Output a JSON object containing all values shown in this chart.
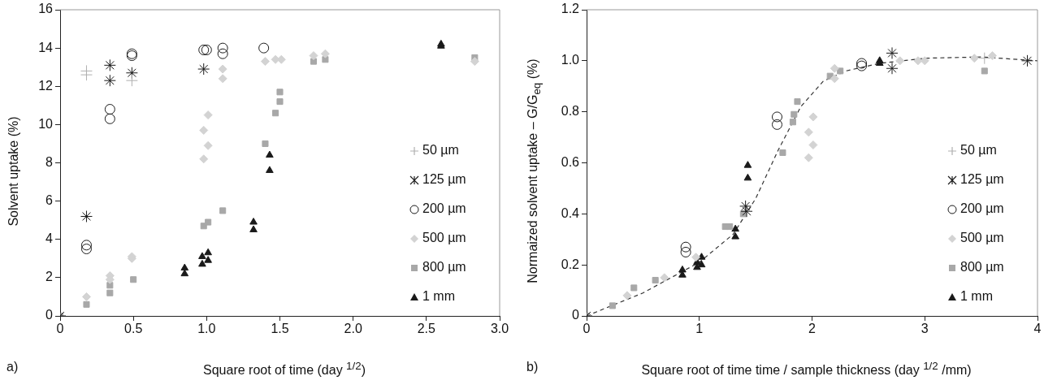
{
  "chart_data": [
    {
      "type": "scatter",
      "xlabel": "Square root of time (day $^{1/2}$)",
      "ylabel": "Solvent uptake (%)",
      "annotations": [
        "a)"
      ],
      "xlim": [
        0,
        3
      ],
      "xticks": [
        0,
        0.5,
        {
          "value": 1,
          "label": "1.0"
        },
        1.5,
        {
          "value": 2,
          "label": "2.0"
        },
        2.5,
        {
          "value": 3,
          "label": "3.0"
        }
      ],
      "ylim": [
        0,
        16
      ],
      "yticks": [
        0,
        2,
        4,
        6,
        8,
        10,
        12,
        14,
        16
      ],
      "grid": false,
      "legend": "bottom right",
      "series": [
        {
          "name": "50 µm",
          "color": "#b0b0b0",
          "marker": "cross",
          "x": [
            0.18,
            0.18,
            0.49
          ],
          "values": [
            12.8,
            12.6,
            12.3
          ]
        },
        {
          "name": "125 µm",
          "color": "#1a1a1a",
          "x": [
            0,
            0.18,
            0.34,
            0.34,
            0.49,
            0.98
          ],
          "values": [
            0,
            5.2,
            13.1,
            12.3,
            12.7,
            12.9
          ]
        },
        {
          "name": "200 µm",
          "color": "#1a1a1a",
          "marker": "circle",
          "x": [
            0.18,
            0.18,
            0.34,
            0.34,
            0.49,
            0.49,
            0.98,
            1.0,
            1.11,
            1.11,
            1.39
          ],
          "values": [
            3.7,
            3.5,
            10.8,
            10.3,
            13.7,
            13.6,
            13.9,
            13.9,
            14.0,
            13.7,
            14.0
          ]
        },
        {
          "name": "500 µm",
          "color": "#d3d3d3",
          "marker": "diamond",
          "x": [
            0.18,
            0.34,
            0.34,
            0.49,
            0.49,
            0.98,
            1.01,
            1.01,
            0.98,
            1.11,
            1.11,
            1.4,
            1.47,
            1.51,
            1.73,
            1.81,
            2.83
          ],
          "values": [
            1.0,
            2.1,
            1.9,
            3.1,
            3.0,
            9.7,
            10.5,
            8.9,
            8.2,
            12.9,
            12.4,
            13.3,
            13.4,
            13.4,
            13.6,
            13.7,
            13.3
          ]
        },
        {
          "name": "800 µm",
          "color": "#a8a8a8",
          "marker": "square",
          "x": [
            0,
            0.18,
            0.34,
            0.34,
            0.5,
            0.98,
            1.01,
            1.11,
            1.4,
            1.47,
            1.5,
            1.5,
            1.73,
            1.81,
            2.83
          ],
          "values": [
            0,
            0.6,
            1.6,
            1.2,
            1.9,
            4.7,
            4.9,
            5.5,
            9.0,
            10.6,
            11.2,
            11.7,
            13.3,
            13.4,
            13.5
          ]
        },
        {
          "name": "1 mm",
          "color": "#1a1a1a",
          "marker": "triangle",
          "x": [
            0.85,
            0.85,
            0.97,
            0.97,
            1.01,
            1.01,
            1.32,
            1.32,
            1.43,
            1.43,
            2.6,
            2.6
          ],
          "values": [
            2.5,
            2.2,
            3.1,
            2.7,
            3.3,
            2.9,
            4.9,
            4.5,
            8.4,
            7.6,
            14.2,
            14.1
          ]
        }
      ]
    },
    {
      "type": "scatter",
      "xlabel": "Square root of time time / sample thickness (day $^{1/2}$ /mm)",
      "ylabel": "Normaized solvent uptake – G/G$_{eq}$ (%)",
      "annotations": [
        "b)"
      ],
      "xlim": [
        0,
        4
      ],
      "xticks": [
        0,
        1,
        2,
        3,
        4
      ],
      "ylim": [
        0,
        1.2
      ],
      "yticks": [
        0,
        0.2,
        0.4,
        0.6,
        0.8,
        {
          "value": 1,
          "label": "1.0"
        },
        1.2
      ],
      "grid": false,
      "legend": "bottom right",
      "series": [
        {
          "name": "50 µm",
          "color": "#b0b0b0",
          "marker": "cross",
          "x": [
            3.53
          ],
          "values": [
            1.01
          ]
        },
        {
          "name": "125 µm",
          "color": "#1a1a1a",
          "x": [
            0,
            1.41,
            1.42,
            2.71,
            2.71,
            3.91
          ],
          "values": [
            0,
            0.43,
            0.41,
            1.03,
            0.97,
            1.0
          ]
        },
        {
          "name": "200 µm",
          "color": "#1a1a1a",
          "marker": "circle",
          "x": [
            0.88,
            0.88,
            1.69,
            1.69,
            2.44,
            2.44
          ],
          "values": [
            0.27,
            0.25,
            0.78,
            0.75,
            0.99,
            0.98
          ]
        },
        {
          "name": "500 µm",
          "color": "#d3d3d3",
          "marker": "diamond",
          "x": [
            0.36,
            0.69,
            0.97,
            2.01,
            1.97,
            2.01,
            1.97,
            2.2,
            2.2,
            2.78,
            2.94,
            3.0,
            3.44,
            3.6
          ],
          "values": [
            0.08,
            0.15,
            0.23,
            0.78,
            0.72,
            0.67,
            0.62,
            0.97,
            0.93,
            1.0,
            1.0,
            1.0,
            1.01,
            1.02
          ]
        },
        {
          "name": "800 µm",
          "color": "#a8a8a8",
          "marker": "square",
          "x": [
            0,
            0.23,
            0.42,
            0.61,
            1.23,
            1.27,
            1.39,
            1.74,
            1.83,
            1.84,
            1.87,
            2.16,
            2.25,
            3.53
          ],
          "values": [
            0,
            0.04,
            0.11,
            0.14,
            0.35,
            0.35,
            0.4,
            0.64,
            0.76,
            0.79,
            0.84,
            0.94,
            0.96,
            0.96
          ]
        },
        {
          "name": "1 mm",
          "color": "#1a1a1a",
          "marker": "triangle",
          "x": [
            0.85,
            0.85,
            0.98,
            0.98,
            1.02,
            1.02,
            1.32,
            1.32,
            1.43,
            1.43,
            2.6,
            2.6
          ],
          "values": [
            0.18,
            0.16,
            0.21,
            0.19,
            0.23,
            0.2,
            0.34,
            0.31,
            0.59,
            0.54,
            1.0,
            0.99
          ]
        },
        {
          "type": "line",
          "color": "#333333",
          "marker": "none",
          "line_style": "dashed",
          "x": [
            0,
            0.5,
            1,
            1.3,
            1.5,
            1.7,
            1.9,
            2.1,
            2.3,
            2.6,
            3.0,
            3.5,
            4.0
          ],
          "values": [
            0,
            0.09,
            0.21,
            0.32,
            0.46,
            0.65,
            0.82,
            0.92,
            0.96,
            0.99,
            1.01,
            1.015,
            1.0
          ]
        }
      ]
    }
  ]
}
